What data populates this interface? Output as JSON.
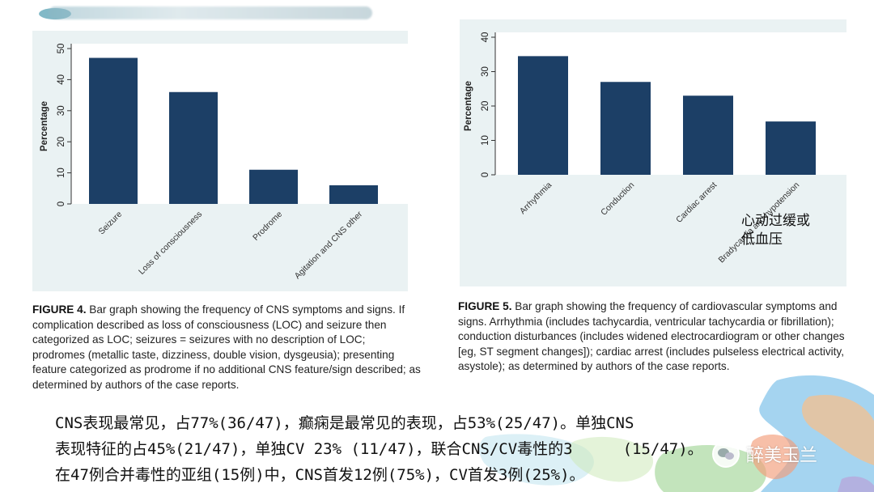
{
  "chart_data": [
    {
      "type": "bar",
      "categories": [
        "Seizure",
        "Loss of consciousness",
        "Prodrome",
        "Agitation and CNS other"
      ],
      "values": [
        47,
        36,
        11,
        6
      ],
      "xlabel": "",
      "ylabel": "Percentage",
      "ylim": [
        0,
        50
      ],
      "yticks": [
        0,
        10,
        20,
        30,
        40,
        50
      ],
      "bar_color": "#1c3f66",
      "grid": false,
      "legend": "none"
    },
    {
      "type": "bar",
      "categories": [
        "Arrhythmia",
        "Conduction",
        "Cardiac arrest",
        "Bradycardia and hypotension"
      ],
      "values": [
        34.5,
        27,
        23,
        15.5
      ],
      "xlabel": "",
      "ylabel": "Percentage",
      "ylim": [
        0,
        40
      ],
      "yticks": [
        0,
        10,
        20,
        30,
        40
      ],
      "bar_color": "#1c3f66",
      "grid": false,
      "legend": "none"
    }
  ],
  "captions": {
    "left": {
      "label": "FIGURE 4.",
      "text": "Bar graph showing the frequency of CNS symptoms and signs. If complication described as loss of consciousness (LOC) and seizure then categorized as LOC; seizures = seizures with no description of LOC; prodromes (metallic taste, dizziness, double vision, dysgeusia); presenting feature categorized as prodrome if no additional CNS feature/sign described; as determined by authors of the case reports."
    },
    "right": {
      "label": "FIGURE 5.",
      "text": "Bar graph showing the frequency of cardiovascular symptoms and signs. Arrhythmia (includes tachycardia, ventricular tachycardia or fibrillation); conduction disturbances (includes widened electrocardiogram or other changes [eg, ST segment changes]); cardiac arrest (includes pulseless electrical activity, asystole); as determined by authors of the case reports."
    }
  },
  "annotation_cn": [
    "心动过缓或",
    "低血压"
  ],
  "summary": [
    "CNS表现最常见，占77%(36/47)，癫痫是最常见的表现，占53%(25/47)。单独CNS",
    "表现特征的占45%(21/47)，单独CV 23% (11/47)，联合CNS/CV毒性的3",
    "在47例合并毒性的亚组(15例)中，CNS首发12例(75%)，CV首发3例(25%)。"
  ],
  "summary_tail": "(15/47)。",
  "watermark": "醉美玉兰",
  "colors": {
    "bar": "#1c3f66",
    "panel_bg": "#eaf2f3",
    "plot_bg": "#ffffff",
    "decor_blue": "#8ec9ec",
    "decor_orange": "#f6c08e",
    "decor_green": "#a9d9a0"
  }
}
